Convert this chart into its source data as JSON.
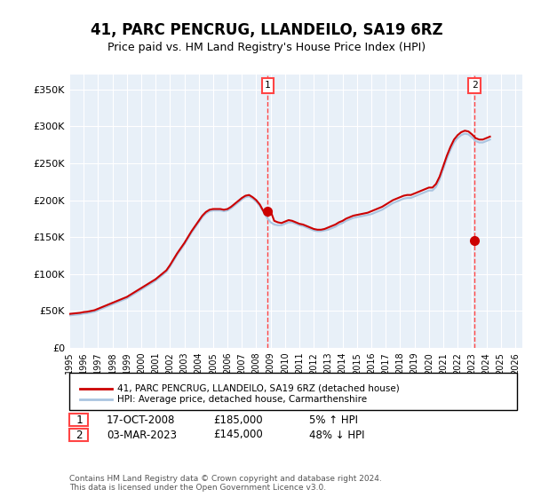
{
  "title": "41, PARC PENCRUG, LLANDEILO, SA19 6RZ",
  "subtitle": "Price paid vs. HM Land Registry's House Price Index (HPI)",
  "ylabel_ticks": [
    "£0",
    "£50K",
    "£100K",
    "£150K",
    "£200K",
    "£250K",
    "£300K",
    "£350K"
  ],
  "ylim": [
    0,
    370000
  ],
  "xlim_start": 1995.0,
  "xlim_end": 2026.5,
  "hpi_color": "#aac4e0",
  "price_color": "#cc0000",
  "transaction_color": "#cc0000",
  "transaction_marker_color": "#cc0000",
  "bg_color": "#e8f0f8",
  "plot_bg": "#e8f0f8",
  "vline_color": "#ff4444",
  "grid_color": "#ffffff",
  "legend_entry1": "41, PARC PENCRUG, LLANDEILO, SA19 6RZ (detached house)",
  "legend_entry2": "HPI: Average price, detached house, Carmarthenshire",
  "annotation1_label": "1",
  "annotation1_date": "17-OCT-2008",
  "annotation1_price": "£185,000",
  "annotation1_hpi": "5% ↑ HPI",
  "annotation2_label": "2",
  "annotation2_date": "03-MAR-2023",
  "annotation2_price": "£145,000",
  "annotation2_hpi": "48% ↓ HPI",
  "footer": "Contains HM Land Registry data © Crown copyright and database right 2024.\nThis data is licensed under the Open Government Licence v3.0.",
  "hpi_years": [
    1995.0,
    1995.25,
    1995.5,
    1995.75,
    1996.0,
    1996.25,
    1996.5,
    1996.75,
    1997.0,
    1997.25,
    1997.5,
    1997.75,
    1998.0,
    1998.25,
    1998.5,
    1998.75,
    1999.0,
    1999.25,
    1999.5,
    1999.75,
    2000.0,
    2000.25,
    2000.5,
    2000.75,
    2001.0,
    2001.25,
    2001.5,
    2001.75,
    2002.0,
    2002.25,
    2002.5,
    2002.75,
    2003.0,
    2003.25,
    2003.5,
    2003.75,
    2004.0,
    2004.25,
    2004.5,
    2004.75,
    2005.0,
    2005.25,
    2005.5,
    2005.75,
    2006.0,
    2006.25,
    2006.5,
    2006.75,
    2007.0,
    2007.25,
    2007.5,
    2007.75,
    2008.0,
    2008.25,
    2008.5,
    2008.75,
    2009.0,
    2009.25,
    2009.5,
    2009.75,
    2010.0,
    2010.25,
    2010.5,
    2010.75,
    2011.0,
    2011.25,
    2011.5,
    2011.75,
    2012.0,
    2012.25,
    2012.5,
    2012.75,
    2013.0,
    2013.25,
    2013.5,
    2013.75,
    2014.0,
    2014.25,
    2014.5,
    2014.75,
    2015.0,
    2015.25,
    2015.5,
    2015.75,
    2016.0,
    2016.25,
    2016.5,
    2016.75,
    2017.0,
    2017.25,
    2017.5,
    2017.75,
    2018.0,
    2018.25,
    2018.5,
    2018.75,
    2019.0,
    2019.25,
    2019.5,
    2019.75,
    2020.0,
    2020.25,
    2020.5,
    2020.75,
    2021.0,
    2021.25,
    2021.5,
    2021.75,
    2022.0,
    2022.25,
    2022.5,
    2022.75,
    2023.0,
    2023.25,
    2023.5,
    2023.75,
    2024.0,
    2024.25
  ],
  "hpi_values": [
    44000,
    44500,
    45000,
    45500,
    46500,
    47000,
    48000,
    49000,
    51000,
    53000,
    55000,
    57000,
    59000,
    61000,
    63000,
    65000,
    67000,
    70000,
    73000,
    76000,
    79000,
    82000,
    85000,
    88000,
    91000,
    95000,
    99000,
    103000,
    110000,
    118000,
    126000,
    133000,
    140000,
    148000,
    156000,
    163000,
    170000,
    177000,
    182000,
    185000,
    186000,
    186000,
    186000,
    185000,
    186000,
    189000,
    193000,
    197000,
    201000,
    204000,
    205000,
    202000,
    198000,
    192000,
    184000,
    176000,
    170000,
    167000,
    166000,
    166000,
    168000,
    170000,
    170000,
    168000,
    166000,
    165000,
    163000,
    161000,
    159000,
    158000,
    158000,
    159000,
    160000,
    162000,
    164000,
    167000,
    169000,
    172000,
    174000,
    176000,
    177000,
    178000,
    179000,
    180000,
    181000,
    183000,
    185000,
    187000,
    190000,
    193000,
    196000,
    198000,
    200000,
    202000,
    203000,
    203000,
    205000,
    207000,
    209000,
    211000,
    213000,
    213000,
    218000,
    228000,
    242000,
    256000,
    268000,
    278000,
    284000,
    288000,
    290000,
    289000,
    285000,
    280000,
    278000,
    278000,
    280000,
    282000
  ],
  "price_line_years": [
    1995.0,
    1995.25,
    1995.5,
    1995.75,
    1996.0,
    1996.25,
    1996.5,
    1996.75,
    1997.0,
    1997.25,
    1997.5,
    1997.75,
    1998.0,
    1998.25,
    1998.5,
    1998.75,
    1999.0,
    1999.25,
    1999.5,
    1999.75,
    2000.0,
    2000.25,
    2000.5,
    2000.75,
    2001.0,
    2001.25,
    2001.5,
    2001.75,
    2002.0,
    2002.25,
    2002.5,
    2002.75,
    2003.0,
    2003.25,
    2003.5,
    2003.75,
    2004.0,
    2004.25,
    2004.5,
    2004.75,
    2005.0,
    2005.25,
    2005.5,
    2005.75,
    2006.0,
    2006.25,
    2006.5,
    2006.75,
    2007.0,
    2007.25,
    2007.5,
    2007.75,
    2008.0,
    2008.25,
    2008.5,
    2008.75,
    2009.0,
    2009.25,
    2009.5,
    2009.75,
    2010.0,
    2010.25,
    2010.5,
    2010.75,
    2011.0,
    2011.25,
    2011.5,
    2011.75,
    2012.0,
    2012.25,
    2012.5,
    2012.75,
    2013.0,
    2013.25,
    2013.5,
    2013.75,
    2014.0,
    2014.25,
    2014.5,
    2014.75,
    2015.0,
    2015.25,
    2015.5,
    2015.75,
    2016.0,
    2016.25,
    2016.5,
    2016.75,
    2017.0,
    2017.25,
    2017.5,
    2017.75,
    2018.0,
    2018.25,
    2018.5,
    2018.75,
    2019.0,
    2019.25,
    2019.5,
    2019.75,
    2020.0,
    2020.25,
    2020.5,
    2020.75,
    2021.0,
    2021.25,
    2021.5,
    2021.75,
    2022.0,
    2022.25,
    2022.5,
    2022.75,
    2023.0,
    2023.25,
    2023.5,
    2023.75,
    2024.0,
    2024.25
  ],
  "price_line_values": [
    46000,
    46500,
    47000,
    47500,
    48500,
    49000,
    50000,
    51000,
    53000,
    55000,
    57000,
    59000,
    61000,
    63000,
    65000,
    67000,
    69000,
    72000,
    75000,
    78000,
    81000,
    84000,
    87000,
    90000,
    93000,
    97000,
    101000,
    105000,
    112000,
    120000,
    128000,
    135000,
    142000,
    150000,
    158000,
    165000,
    172000,
    179000,
    184000,
    187000,
    188000,
    188000,
    188000,
    187000,
    188000,
    191000,
    195000,
    199000,
    203000,
    206000,
    207000,
    204000,
    200000,
    194000,
    185000,
    185000,
    185000,
    172000,
    170000,
    169000,
    171000,
    173000,
    172000,
    170000,
    168000,
    167000,
    165000,
    163000,
    161000,
    160000,
    160000,
    161000,
    163000,
    165000,
    167000,
    170000,
    172000,
    175000,
    177000,
    179000,
    180000,
    181000,
    182000,
    183000,
    185000,
    187000,
    189000,
    191000,
    194000,
    197000,
    200000,
    202000,
    204000,
    206000,
    207000,
    207000,
    209000,
    211000,
    213000,
    215000,
    217000,
    217000,
    222000,
    232000,
    246000,
    260000,
    272000,
    282000,
    288000,
    292000,
    294000,
    293000,
    289000,
    284000,
    282000,
    282000,
    284000,
    286000
  ],
  "transaction1_x": 2008.8,
  "transaction1_y": 185000,
  "transaction2_x": 2023.17,
  "transaction2_y": 145000,
  "vline1_x": 2008.8,
  "vline2_x": 2023.17
}
